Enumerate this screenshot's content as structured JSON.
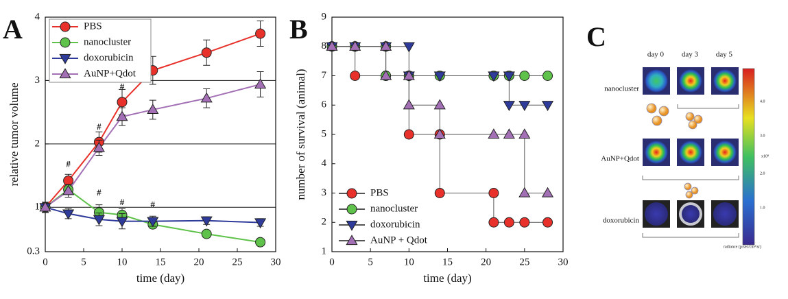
{
  "chart_data": [
    {
      "type": "line",
      "label": "A",
      "xlabel": "time (day)",
      "ylabel": "relative tumor volume",
      "x": [
        0,
        3,
        7,
        10,
        14,
        21,
        28
      ],
      "xlim": [
        0,
        30
      ],
      "xticks": [
        0,
        5,
        10,
        15,
        20,
        25,
        30
      ],
      "ylim": [
        0.3,
        4
      ],
      "yticks": [
        0.3,
        1,
        2,
        3,
        4
      ],
      "grid": true,
      "legend": "upper left",
      "series": [
        {
          "name": "PBS",
          "color": "#e8312b",
          "marker": "circle",
          "values": [
            1.0,
            1.42,
            2.03,
            2.66,
            3.16,
            3.44,
            3.74
          ],
          "errors": [
            0.08,
            0.1,
            0.16,
            0.2,
            0.22,
            0.2,
            0.2
          ]
        },
        {
          "name": "nanocluster",
          "color": "#5fc24a",
          "marker": "circle",
          "values": [
            1.0,
            1.28,
            0.92,
            0.88,
            0.73,
            0.58,
            0.45
          ],
          "errors": [
            0.08,
            0.08,
            0.12,
            0.1,
            0.06,
            0.05,
            0.05
          ]
        },
        {
          "name": "doxorubicin",
          "color": "#2f3b9a",
          "marker": "triangle-down",
          "values": [
            1.0,
            0.9,
            0.81,
            0.78,
            0.78,
            0.79,
            0.76
          ],
          "errors": [
            0.06,
            0.08,
            0.1,
            0.12,
            0.08,
            0.06,
            0.06
          ]
        },
        {
          "name": "AuNP+Qdot",
          "color": "#a36fb5",
          "marker": "triangle-up",
          "values": [
            1.0,
            1.26,
            1.94,
            2.43,
            2.54,
            2.72,
            2.94
          ],
          "errors": [
            0.08,
            0.1,
            0.12,
            0.14,
            0.15,
            0.15,
            0.2
          ]
        }
      ],
      "annotations": [
        {
          "text": "#",
          "x": 3,
          "y": 1.67
        },
        {
          "text": "#",
          "x": 7,
          "y": 2.26
        },
        {
          "text": "#",
          "x": 10,
          "y": 2.89
        },
        {
          "text": "#",
          "x": 7,
          "y": 1.22
        },
        {
          "text": "#",
          "x": 10,
          "y": 1.07
        },
        {
          "text": "#",
          "x": 14,
          "y": 1.03
        }
      ]
    },
    {
      "type": "line",
      "label": "B",
      "xlabel": "time (day)",
      "ylabel": "number of survival (animal)",
      "xlim": [
        0,
        30
      ],
      "xticks": [
        0,
        5,
        10,
        15,
        20,
        25,
        30
      ],
      "ylim": [
        1,
        9
      ],
      "yticks": [
        1,
        2,
        3,
        4,
        5,
        6,
        7,
        8,
        9
      ],
      "grid": false,
      "legend": "lower left",
      "line_color": "#555555",
      "series": [
        {
          "name": "PBS",
          "color": "#e8312b",
          "marker": "circle",
          "x": [
            0,
            3,
            3,
            7,
            10,
            10,
            14,
            14,
            21,
            21,
            23,
            25,
            28
          ],
          "values": [
            8,
            8,
            7,
            7,
            7,
            5,
            5,
            3,
            3,
            2,
            2,
            2,
            2
          ]
        },
        {
          "name": "nanocluster",
          "color": "#5fc24a",
          "marker": "circle",
          "x": [
            0,
            3,
            7,
            7,
            10,
            14,
            21,
            23,
            25,
            28
          ],
          "values": [
            8,
            8,
            8,
            7,
            7,
            7,
            7,
            7,
            7,
            7
          ]
        },
        {
          "name": "doxorubicin",
          "color": "#2f3b9a",
          "marker": "triangle-down",
          "x": [
            0,
            3,
            7,
            10,
            10,
            14,
            21,
            23,
            23,
            25,
            28
          ],
          "values": [
            8,
            8,
            8,
            8,
            7,
            7,
            7,
            7,
            6,
            6,
            6
          ]
        },
        {
          "name": "AuNP + Qdot",
          "color": "#a36fb5",
          "marker": "triangle-up",
          "x": [
            0,
            3,
            7,
            7,
            10,
            10,
            14,
            14,
            21,
            23,
            25,
            25,
            28
          ],
          "values": [
            8,
            8,
            8,
            7,
            7,
            6,
            6,
            5,
            5,
            5,
            5,
            3,
            3
          ]
        }
      ]
    }
  ],
  "image_panel": {
    "label": "C",
    "columns": [
      "day 0",
      "day 3",
      "day 5"
    ],
    "rows": [
      "nanocluster",
      "AuNP+Qdot",
      "doxorubicin"
    ],
    "colorbar_ticks": [
      "4.0",
      "3.0",
      "2.0",
      "1.0"
    ],
    "colorbar_exponent": "x10⁸",
    "colorbar_label": "radiance (p/sec/cm²/sr)"
  }
}
